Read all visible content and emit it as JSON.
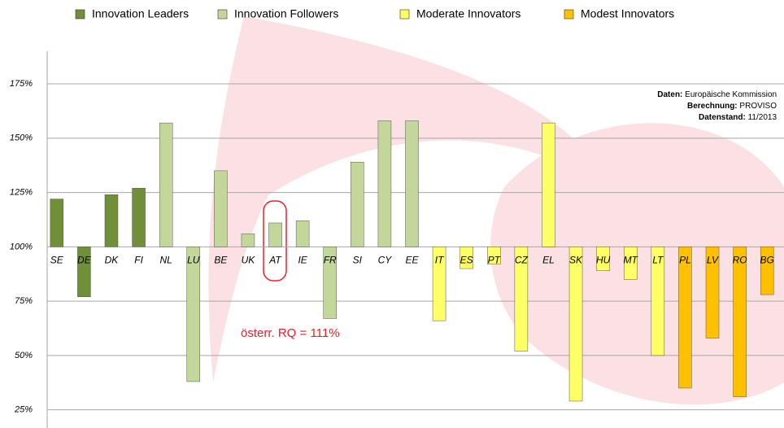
{
  "chart_data": {
    "type": "bar",
    "categories": [
      "SE",
      "DE",
      "DK",
      "FI",
      "NL",
      "LU",
      "BE",
      "UK",
      "AT",
      "IE",
      "FR",
      "SI",
      "CY",
      "EE",
      "IT",
      "ES",
      "PT",
      "CZ",
      "EL",
      "SK",
      "HU",
      "MT",
      "LT",
      "PL",
      "LV",
      "RO",
      "BG"
    ],
    "baseline": 100,
    "series": [
      {
        "name": "Innovation Leaders",
        "color": "#6f9038",
        "values": [
          122,
          77,
          124,
          127,
          null,
          null,
          null,
          null,
          null,
          null,
          null,
          null,
          null,
          null,
          null,
          null,
          null,
          null,
          null,
          null,
          null,
          null,
          null,
          null,
          null,
          null,
          null
        ]
      },
      {
        "name": "Innovation Followers",
        "color": "#c4d79b",
        "values": [
          null,
          null,
          null,
          null,
          157,
          38,
          135,
          106,
          111,
          112,
          67,
          139,
          158,
          158,
          null,
          null,
          null,
          null,
          null,
          null,
          null,
          null,
          null,
          null,
          null,
          null,
          null
        ]
      },
      {
        "name": "Moderate Innovators",
        "color": "#ffff66",
        "values": [
          null,
          null,
          null,
          null,
          null,
          null,
          null,
          null,
          null,
          null,
          null,
          null,
          null,
          null,
          66,
          90,
          92,
          52,
          157,
          29,
          89,
          85,
          50,
          null,
          null,
          null,
          null
        ]
      },
      {
        "name": "Modest Innovators",
        "color": "#ffc000",
        "values": [
          null,
          null,
          null,
          null,
          null,
          null,
          null,
          null,
          null,
          null,
          null,
          null,
          null,
          null,
          null,
          null,
          null,
          null,
          null,
          null,
          null,
          null,
          null,
          35,
          58,
          31,
          78
        ]
      }
    ],
    "ylim": [
      20,
      190
    ],
    "yticks": [
      {
        "value": 25,
        "label": "25%"
      },
      {
        "value": 50,
        "label": "50%"
      },
      {
        "value": 75,
        "label": "75%"
      },
      {
        "value": 100,
        "label": "100%"
      },
      {
        "value": 125,
        "label": "125%"
      },
      {
        "value": 150,
        "label": "150%"
      },
      {
        "value": 175,
        "label": "175%"
      }
    ],
    "grid": true,
    "annotations": [
      "österr. RQ = 111%"
    ],
    "source": [
      {
        "key": "Daten:",
        "text": "Europäische Kommission"
      },
      {
        "key": "Berechnung:",
        "text": "PROVISO"
      },
      {
        "key": "Datenstand:",
        "text": "11/2013"
      }
    ]
  }
}
